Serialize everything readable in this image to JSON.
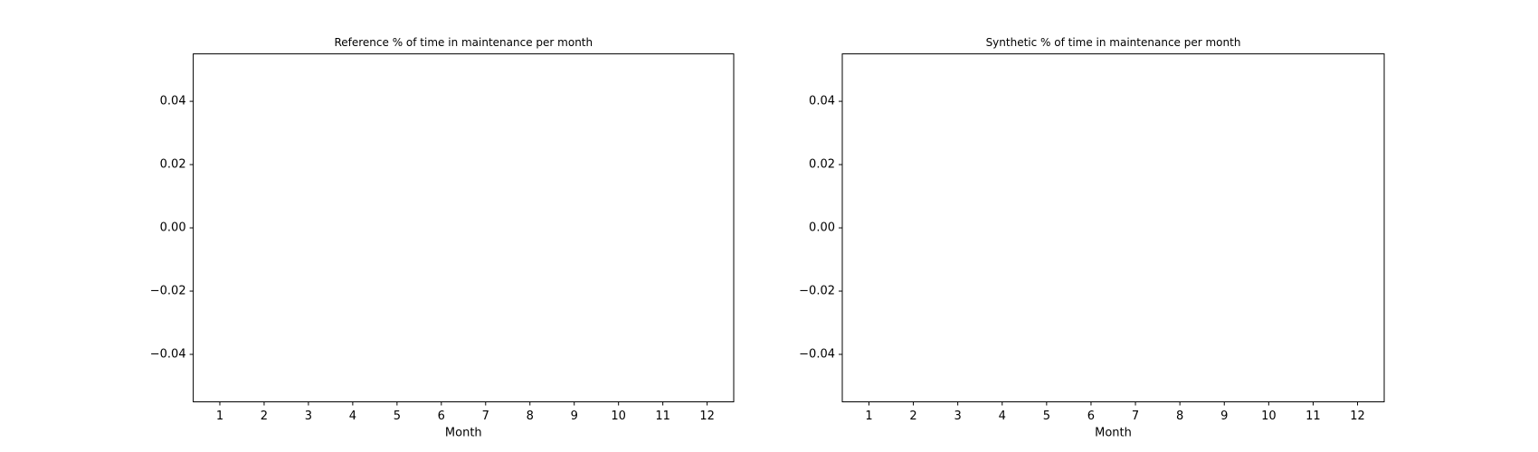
{
  "chart_data": [
    {
      "type": "bar",
      "title": "Reference % of time in maintenance per month",
      "x_label": "Month",
      "categories": [
        "1",
        "2",
        "3",
        "4",
        "5",
        "6",
        "7",
        "8",
        "9",
        "10",
        "11",
        "12"
      ],
      "values": [
        0,
        0,
        0,
        0,
        0,
        0,
        0,
        0,
        0,
        0,
        0,
        0
      ],
      "color": "#1f77b4",
      "ylim": [
        -0.055,
        0.055
      ],
      "yticks": [
        {
          "value": -0.04,
          "label": "−0.04"
        },
        {
          "value": -0.02,
          "label": "−0.02"
        },
        {
          "value": 0,
          "label": "0.00"
        },
        0.02,
        0.04
      ],
      "grid": false
    },
    {
      "type": "bar",
      "title": "Synthetic % of time in maintenance per month",
      "x_label": "Month",
      "categories": [
        "1",
        "2",
        "3",
        "4",
        "5",
        "6",
        "7",
        "8",
        "9",
        "10",
        "11",
        "12"
      ],
      "values": [
        0,
        0,
        0,
        0,
        0,
        0,
        0,
        0,
        0,
        0,
        0,
        0
      ],
      "color": "#1f77b4",
      "ylim": [
        -0.055,
        0.055
      ],
      "yticks": [
        {
          "value": -0.04,
          "label": "−0.04"
        },
        {
          "value": -0.02,
          "label": "−0.02"
        },
        {
          "value": 0,
          "label": "0.00"
        },
        0.02,
        0.04
      ],
      "grid": false
    }
  ]
}
